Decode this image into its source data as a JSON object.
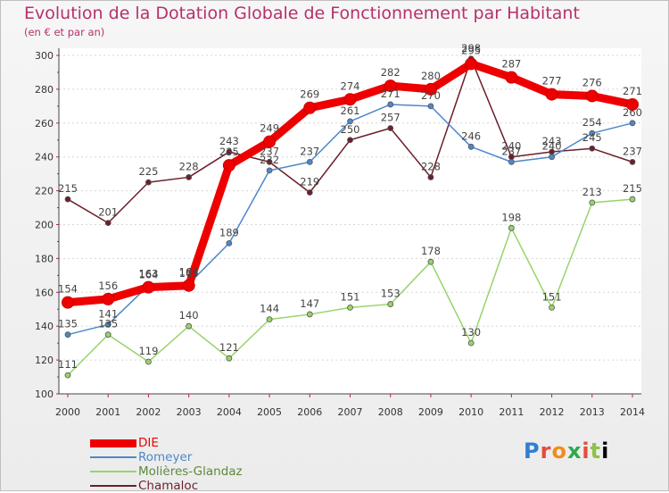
{
  "title": "Evolution de la Dotation Globale de Fonctionnement par Habitant",
  "subtitle": "(en € et par an)",
  "logo": [
    "P",
    "r",
    "o",
    "x",
    "i",
    "t",
    "i"
  ],
  "chart_data": {
    "type": "line",
    "x": [
      "2000",
      "2001",
      "2002",
      "2003",
      "2004",
      "2005",
      "2006",
      "2007",
      "2008",
      "2009",
      "2010",
      "2011",
      "2012",
      "2013",
      "2014"
    ],
    "ylim": [
      100,
      300
    ],
    "yticks": [
      100,
      120,
      140,
      160,
      180,
      200,
      220,
      240,
      260,
      280,
      300
    ],
    "grid": "horizontal dashed",
    "legend_position": "bottom-left",
    "series": [
      {
        "name": "DIE",
        "color": "#ee0000",
        "values": [
          154,
          156,
          163,
          164,
          235,
          249,
          269,
          274,
          282,
          280,
          295,
          287,
          277,
          276,
          271
        ]
      },
      {
        "name": "Romeyer",
        "color": "#4d88c9",
        "values": [
          135,
          141,
          164,
          165,
          189,
          232,
          237,
          261,
          271,
          270,
          246,
          237,
          240,
          254,
          260
        ]
      },
      {
        "name": "Molières-Glandaz",
        "color": "#98d36b",
        "values": [
          111,
          135,
          119,
          140,
          121,
          144,
          147,
          151,
          153,
          178,
          130,
          198,
          151,
          213,
          215
        ]
      },
      {
        "name": "Chamaloc",
        "color": "#6b1f2a",
        "values": [
          215,
          201,
          225,
          228,
          243,
          237,
          219,
          250,
          257,
          228,
          298,
          240,
          243,
          245,
          237
        ]
      }
    ]
  }
}
